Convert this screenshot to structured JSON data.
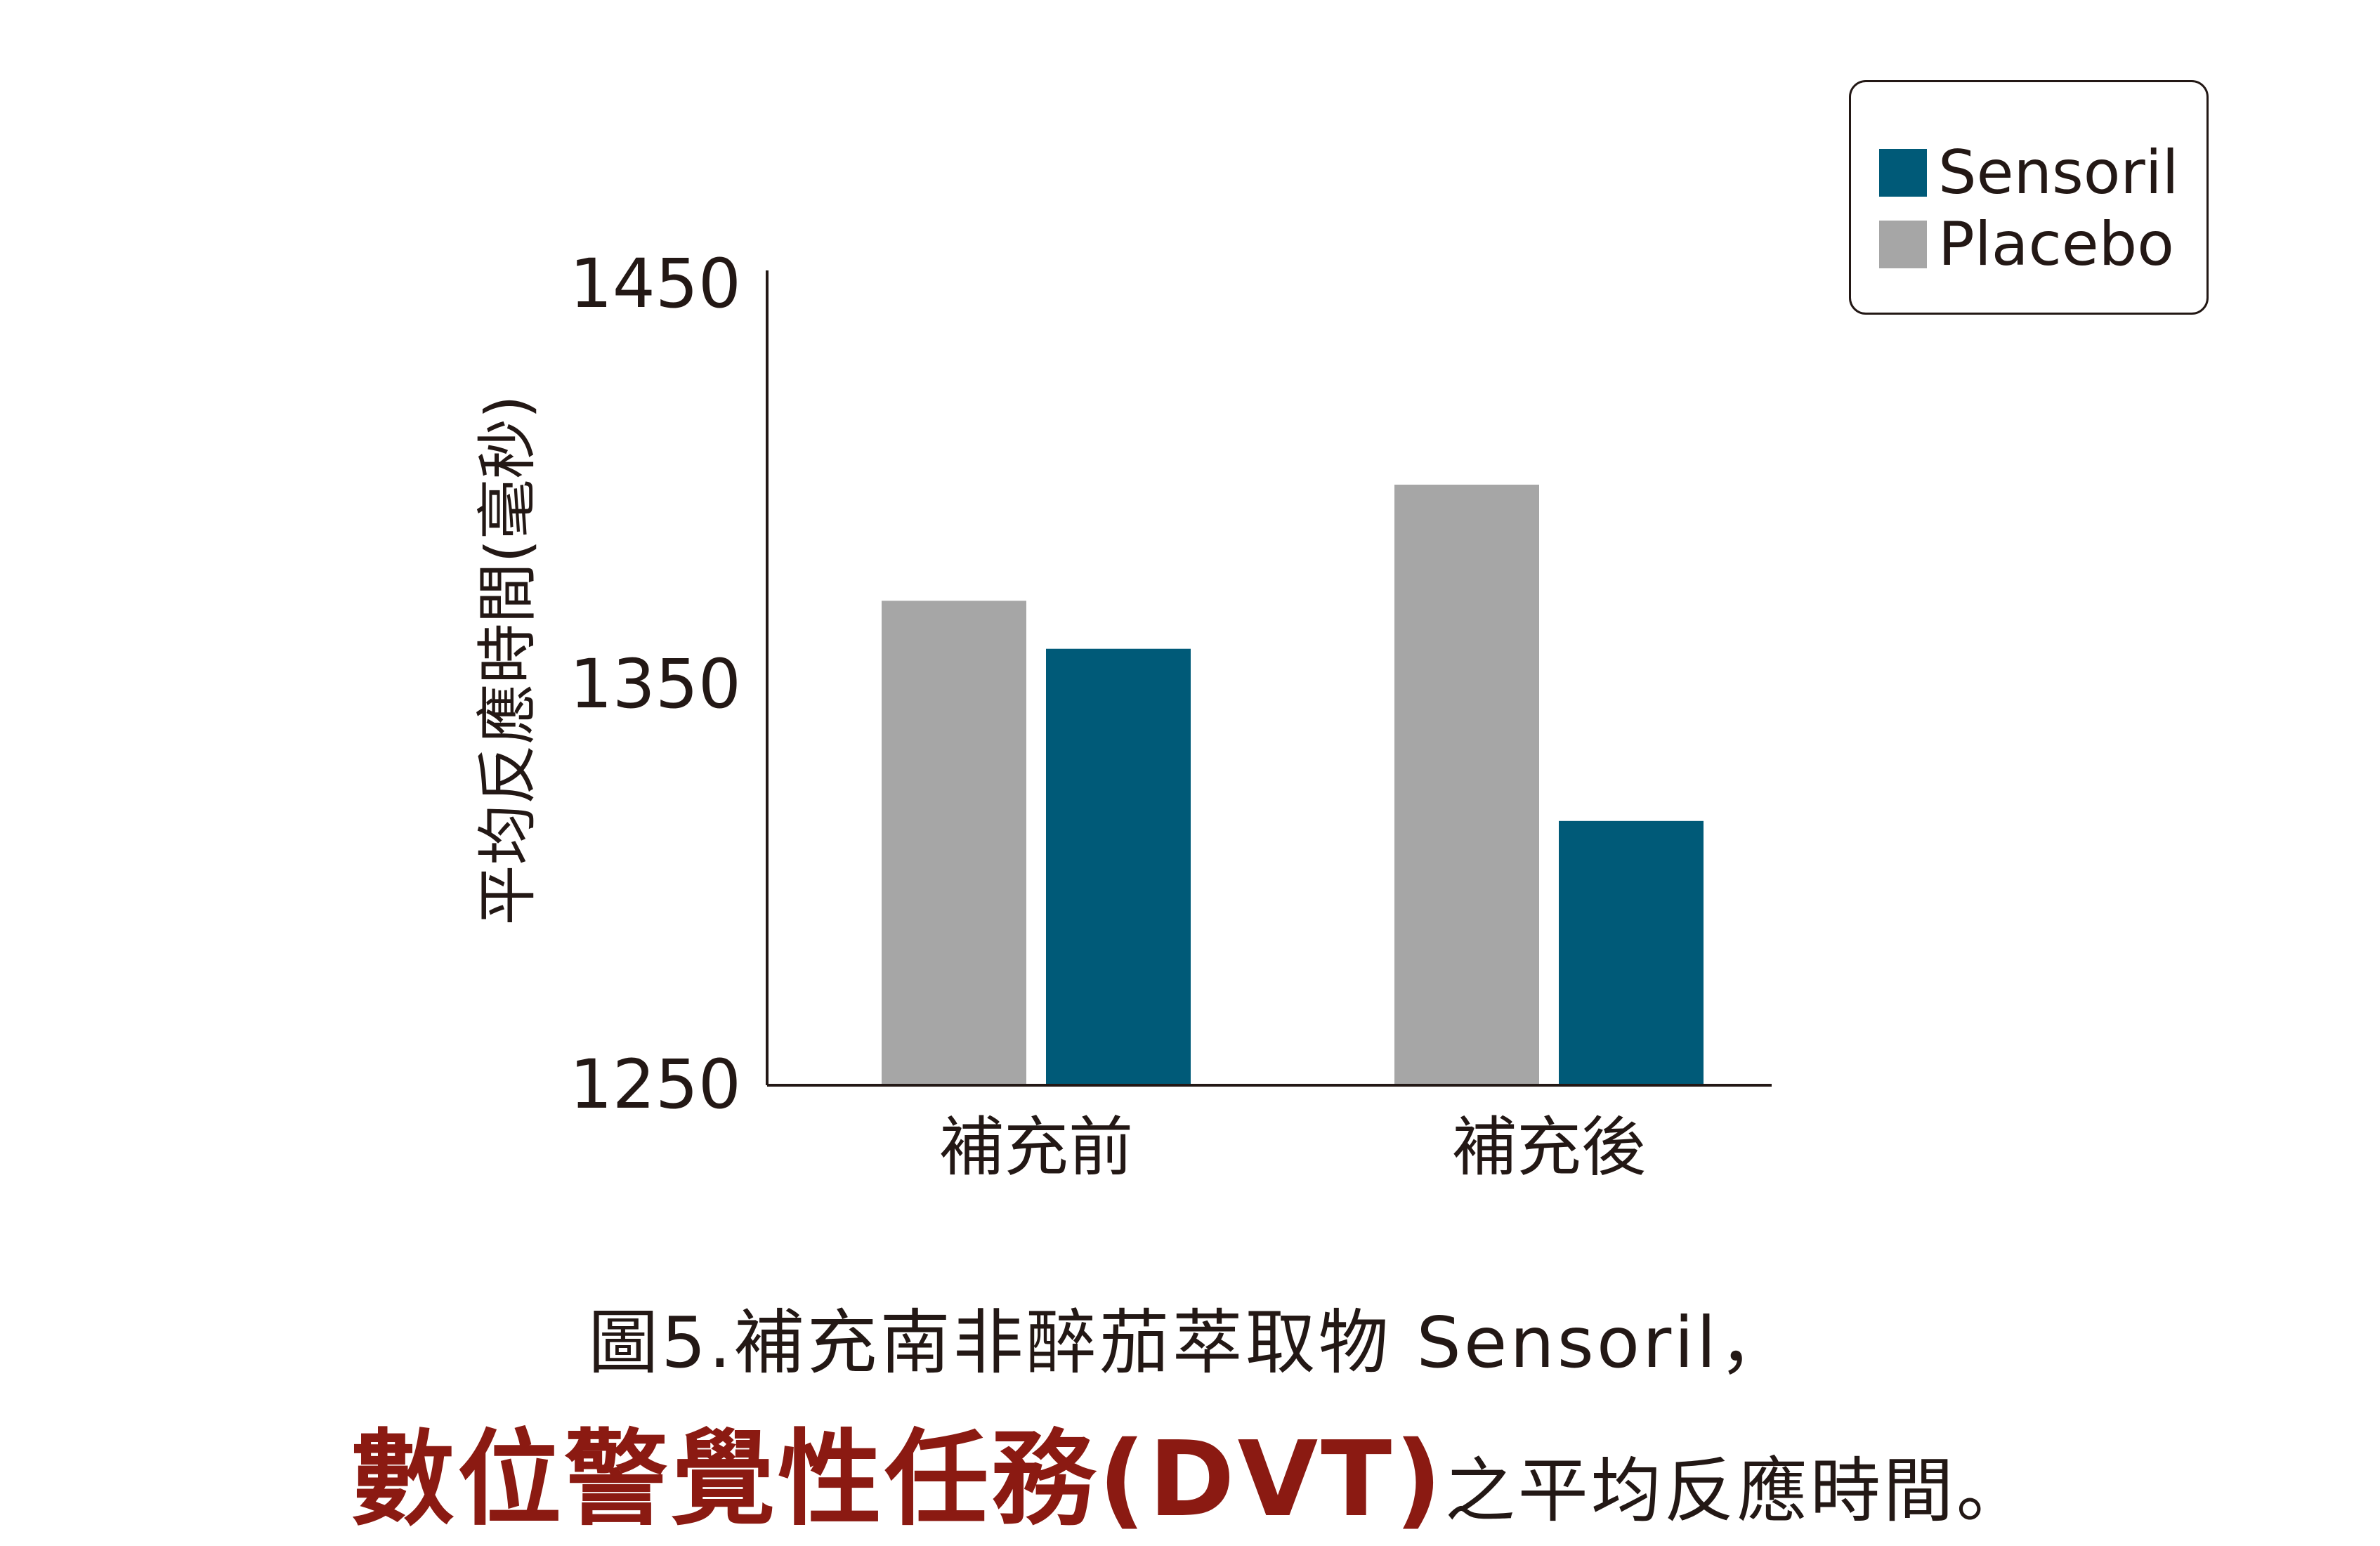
{
  "chart_data": {
    "type": "bar",
    "categories": [
      "補充前",
      "補充後"
    ],
    "series": [
      {
        "name": "Placebo",
        "color": "#a6a6a6",
        "values": [
          1371,
          1400
        ]
      },
      {
        "name": "Sensoril",
        "color": "#005a78",
        "values": [
          1359,
          1316
        ]
      }
    ],
    "ylabel": "平均反應時間(毫秒)",
    "ylim": [
      1250,
      1450
    ],
    "yticks": [
      1250,
      1350,
      1450
    ],
    "legend_position": "top-right",
    "grid": false
  },
  "legend": [
    {
      "label": "Sensoril",
      "color": "#005a78"
    },
    {
      "label": "Placebo",
      "color": "#a6a6a6"
    }
  ],
  "caption": {
    "line1": "圖5.補充南非醉茄萃取物 Sensoril，",
    "line2_strong": "數位警覺性任務(DVT)",
    "line2_rest": "之平均反應時間。"
  }
}
